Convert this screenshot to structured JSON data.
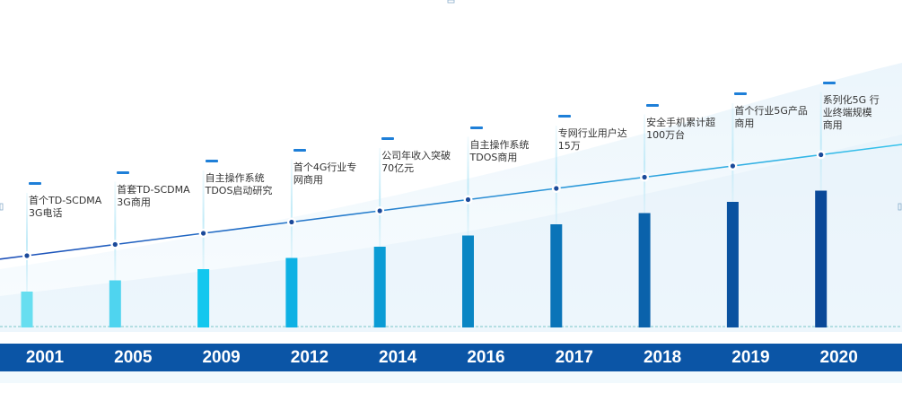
{
  "milestones": [
    {
      "year": "2001",
      "text": [
        "首个TD-SCDMA",
        "3G电话"
      ],
      "level": 0.32,
      "bar_color": "#67def0"
    },
    {
      "year": "2005",
      "text": [
        "首套TD-SCDMA",
        "3G商用"
      ],
      "level": 0.42,
      "bar_color": "#4fd4ef"
    },
    {
      "year": "2009",
      "text": [
        "自主操作系统",
        "TDOS启动研究"
      ],
      "level": 0.52,
      "bar_color": "#13c7ee"
    },
    {
      "year": "2012",
      "text": [
        "首个4G行业专",
        "网商用"
      ],
      "level": 0.62,
      "bar_color": "#0eb1e4"
    },
    {
      "year": "2014",
      "text": [
        "公司年收入突破",
        "70亿元"
      ],
      "level": 0.72,
      "bar_color": "#0b9cd5"
    },
    {
      "year": "2016",
      "text": [
        "自主操作系统",
        "TDOS商用"
      ],
      "level": 0.82,
      "bar_color": "#0a86c4"
    },
    {
      "year": "2017",
      "text": [
        "专网行业用户达",
        "15万"
      ],
      "level": 0.92,
      "bar_color": "#0a74b8"
    },
    {
      "year": "2018",
      "text": [
        "安全手机累计超",
        "100万台"
      ],
      "level": 1.02,
      "bar_color": "#0a62ab"
    },
    {
      "year": "2019",
      "text": [
        "首个行业5G产品",
        "商用"
      ],
      "level": 1.12,
      "bar_color": "#0a52a0"
    },
    {
      "year": "2020",
      "text": [
        "系列化5G 行",
        "业终端规模",
        "商用"
      ],
      "level": 1.22,
      "bar_color": "#0a4898"
    }
  ],
  "colors": {
    "year_band": "#0b55a6",
    "trend_start": "#1c4fb8",
    "trend_end": "#35c3ec",
    "accent": "#1e7fd8"
  }
}
